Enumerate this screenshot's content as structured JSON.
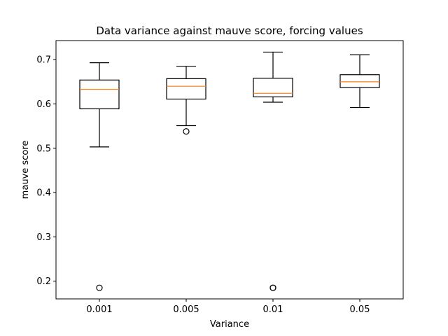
{
  "chart_data": {
    "type": "box",
    "title": "Data variance against mauve score, forcing values",
    "xlabel": "Variance",
    "ylabel": "mauve score",
    "categories": [
      "0.001",
      "0.005",
      "0.01",
      "0.05"
    ],
    "ylim": [
      0.16,
      0.743
    ],
    "yticks": [
      0.2,
      0.3,
      0.4,
      0.5,
      0.6,
      0.7
    ],
    "ytick_labels": [
      "0.2",
      "0.3",
      "0.4",
      "0.5",
      "0.6",
      "0.7"
    ],
    "grid": false,
    "colors": {
      "box": "#000000",
      "median": "#ff7f0e"
    },
    "boxes": [
      {
        "category": "0.001",
        "whisker_low": 0.503,
        "q1": 0.589,
        "median": 0.633,
        "q3": 0.654,
        "whisker_high": 0.693,
        "outliers": [
          0.185
        ]
      },
      {
        "category": "0.005",
        "whisker_low": 0.551,
        "q1": 0.611,
        "median": 0.64,
        "q3": 0.657,
        "whisker_high": 0.685,
        "outliers": [
          0.538
        ]
      },
      {
        "category": "0.01",
        "whisker_low": 0.604,
        "q1": 0.616,
        "median": 0.624,
        "q3": 0.658,
        "whisker_high": 0.717,
        "outliers": [
          0.185,
          0.185
        ]
      },
      {
        "category": "0.05",
        "whisker_low": 0.592,
        "q1": 0.637,
        "median": 0.65,
        "q3": 0.666,
        "whisker_high": 0.711,
        "outliers": []
      }
    ]
  }
}
